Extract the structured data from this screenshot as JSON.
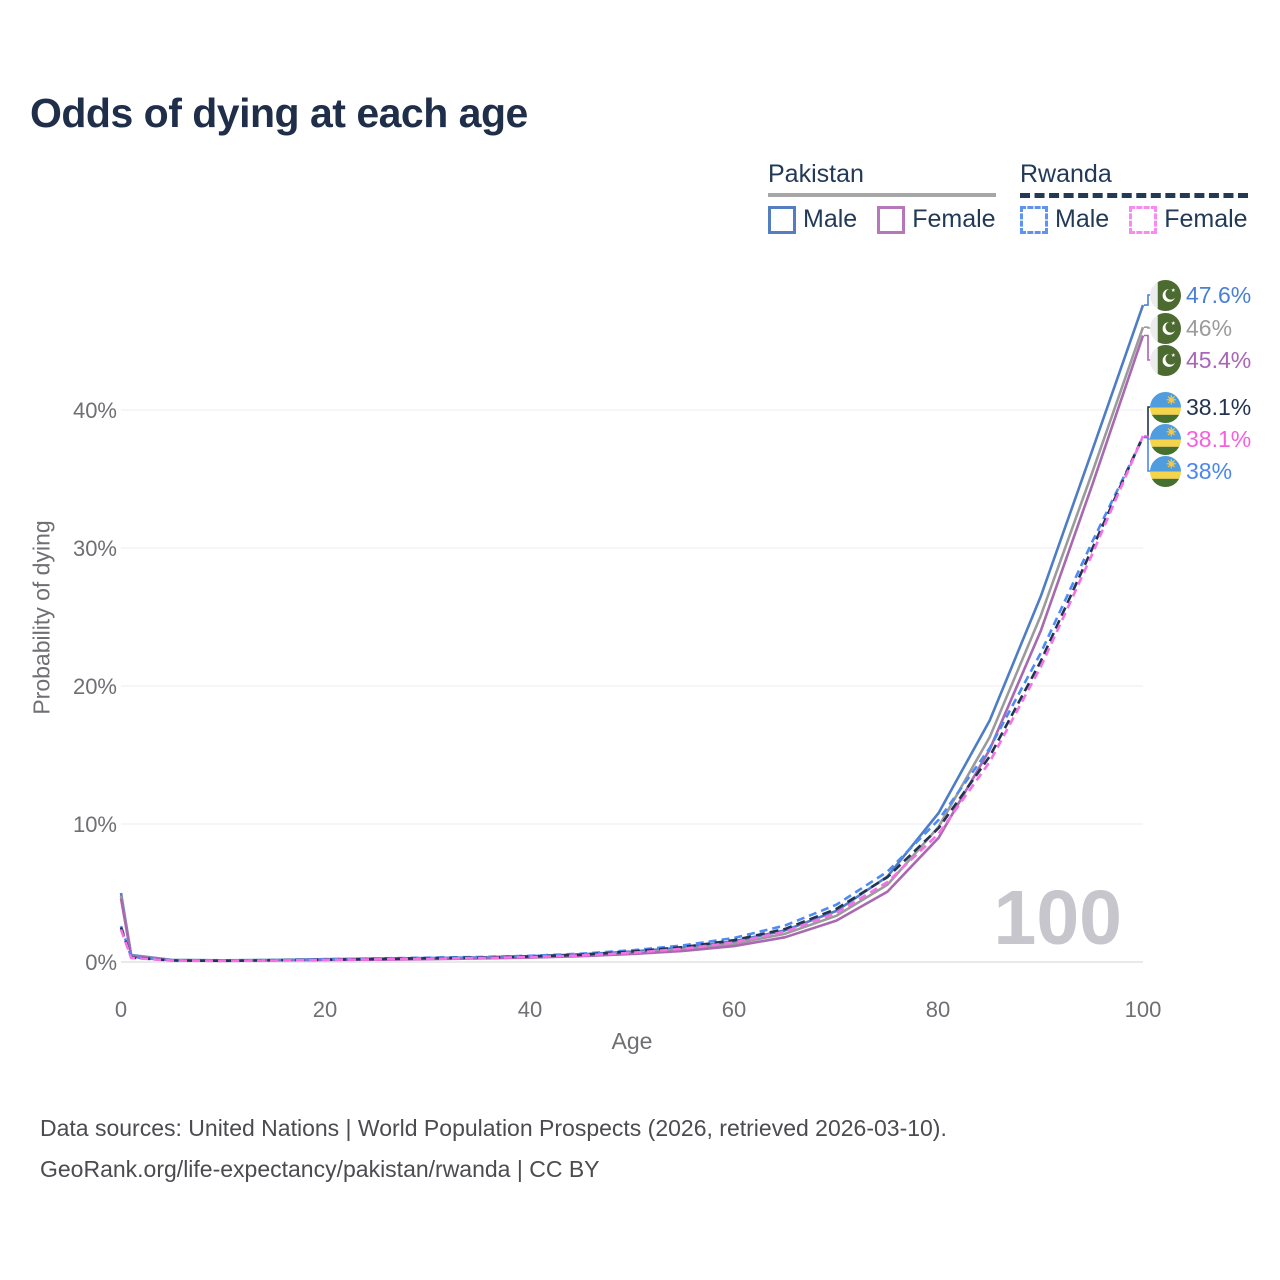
{
  "title": "Odds of dying at each age",
  "watermark": "100",
  "legend": {
    "groups": [
      {
        "label": "Pakistan",
        "line_style": "solid",
        "underline_color": "#a7a7a7",
        "items": [
          {
            "label": "Male",
            "color": "#537fc0",
            "dashed": false
          },
          {
            "label": "Female",
            "color": "#b678bb",
            "dashed": false
          }
        ]
      },
      {
        "label": "Rwanda",
        "line_style": "dashed",
        "underline_color": "#233a57",
        "items": [
          {
            "label": "Male",
            "color": "#5f93f2",
            "dashed": true
          },
          {
            "label": "Female",
            "color": "#f98af0",
            "dashed": true
          }
        ]
      }
    ]
  },
  "axes": {
    "x": {
      "title": "Age",
      "ticks": [
        "0",
        "20",
        "40",
        "60",
        "80",
        "100"
      ],
      "tick_values": [
        0,
        20,
        40,
        60,
        80,
        100
      ],
      "range": [
        0,
        100
      ]
    },
    "y": {
      "title": "Probability of dying",
      "ticks": [
        "0%",
        "10%",
        "20%",
        "30%",
        "40%"
      ],
      "tick_values": [
        0,
        10,
        20,
        30,
        40
      ],
      "range": [
        0,
        47.6
      ],
      "grid": true
    }
  },
  "chart_data": {
    "type": "line",
    "xlabel": "Age",
    "ylabel": "Probability of dying",
    "x_ages": [
      0,
      1,
      5,
      10,
      15,
      20,
      25,
      30,
      35,
      40,
      45,
      50,
      55,
      60,
      65,
      70,
      75,
      80,
      85,
      90,
      95,
      100
    ],
    "series": [
      {
        "key": "pk_male",
        "name": "Pakistan Male",
        "color": "#4e7dc6",
        "dash": null,
        "values": [
          5.0,
          0.5,
          0.15,
          0.12,
          0.15,
          0.2,
          0.24,
          0.28,
          0.33,
          0.42,
          0.55,
          0.75,
          1.05,
          1.5,
          2.3,
          3.7,
          6.2,
          10.8,
          17.5,
          26.5,
          37.0,
          47.6
        ]
      },
      {
        "key": "pk_total",
        "name": "Pakistan (both sexes)",
        "color": "#9b9b9b",
        "dash": null,
        "values": [
          4.8,
          0.46,
          0.14,
          0.11,
          0.13,
          0.17,
          0.2,
          0.24,
          0.29,
          0.37,
          0.48,
          0.66,
          0.92,
          1.32,
          2.05,
          3.35,
          5.6,
          9.8,
          16.3,
          25.1,
          35.4,
          46.0
        ]
      },
      {
        "key": "pk_female",
        "name": "Pakistan Female",
        "color": "#a869b0",
        "dash": null,
        "values": [
          4.6,
          0.42,
          0.13,
          0.1,
          0.12,
          0.15,
          0.17,
          0.2,
          0.25,
          0.32,
          0.42,
          0.58,
          0.8,
          1.15,
          1.8,
          3.0,
          5.1,
          9.0,
          15.4,
          24.0,
          34.5,
          45.4
        ]
      },
      {
        "key": "rw_male",
        "name": "Rwanda Male",
        "color": "#4e8bf5",
        "dash": "8 5",
        "values": [
          2.6,
          0.35,
          0.12,
          0.1,
          0.14,
          0.2,
          0.26,
          0.31,
          0.36,
          0.45,
          0.6,
          0.85,
          1.2,
          1.75,
          2.65,
          4.15,
          6.55,
          10.3,
          15.5,
          22.4,
          30.4,
          38.0
        ]
      },
      {
        "key": "rw_total",
        "name": "Rwanda (both sexes)",
        "color": "#22344f",
        "dash": "9 5",
        "values": [
          2.5,
          0.32,
          0.11,
          0.09,
          0.12,
          0.17,
          0.22,
          0.27,
          0.32,
          0.4,
          0.53,
          0.76,
          1.08,
          1.58,
          2.4,
          3.85,
          6.15,
          9.7,
          14.9,
          21.8,
          29.9,
          38.1
        ]
      },
      {
        "key": "rw_female",
        "name": "Rwanda Female",
        "color": "#f670e6",
        "dash": "8 5",
        "values": [
          2.35,
          0.3,
          0.1,
          0.08,
          0.11,
          0.15,
          0.19,
          0.23,
          0.28,
          0.36,
          0.47,
          0.67,
          0.96,
          1.42,
          2.2,
          3.55,
          5.8,
          9.3,
          14.5,
          21.4,
          29.5,
          38.1
        ]
      }
    ],
    "end_labels": [
      {
        "series": "pk_male",
        "value": "47.6%",
        "color": "#4a80d4",
        "flag": "pakistan"
      },
      {
        "series": "pk_total",
        "value": "46%",
        "color": "#9b9b9b",
        "flag": "pakistan"
      },
      {
        "series": "pk_female",
        "value": "45.4%",
        "color": "#aa64b8",
        "flag": "pakistan"
      },
      {
        "series": "rw_total",
        "value": "38.1%",
        "color": "#22344f",
        "flag": "rwanda"
      },
      {
        "series": "rw_female",
        "value": "38.1%",
        "color": "#f65fde",
        "flag": "rwanda"
      },
      {
        "series": "rw_male",
        "value": "38%",
        "color": "#4c86ee",
        "flag": "rwanda"
      }
    ],
    "hover_age_indicator": "100"
  },
  "sources": {
    "line1": "Data sources: United Nations | World Population Prospects (2026, retrieved 2026-03-10).",
    "line2": "GeoRank.org/life-expectancy/pakistan/rwanda | CC BY"
  }
}
